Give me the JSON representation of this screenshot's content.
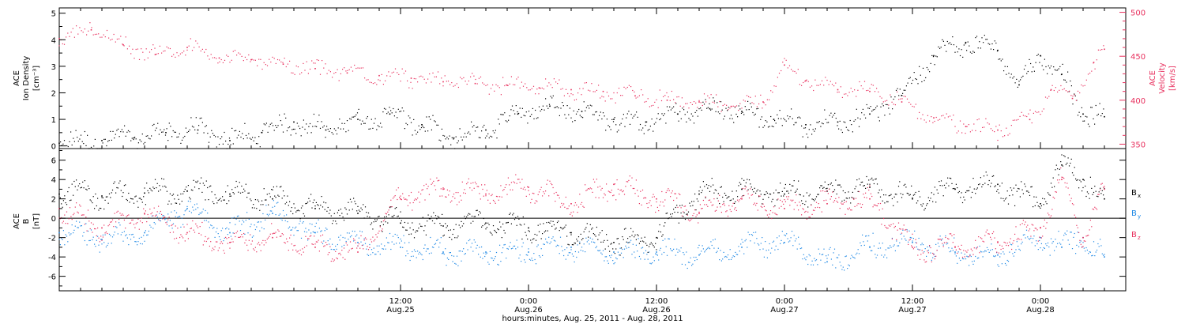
{
  "colors": {
    "black": "#000000",
    "pink": "#e8305e",
    "blue": "#1e88e5"
  },
  "x_axis": {
    "title": "hours:minutes, Aug. 25, 2011 - Aug. 28, 2011",
    "range_hours": [
      -20,
      80
    ],
    "major_ticks": [
      {
        "hours": 12,
        "time": "12:00",
        "date": "Aug.25"
      },
      {
        "hours": 24,
        "time": "0:00",
        "date": "Aug.26"
      },
      {
        "hours": 36,
        "time": "12:00",
        "date": "Aug.26"
      },
      {
        "hours": 48,
        "time": "0:00",
        "date": "Aug.27"
      },
      {
        "hours": 60,
        "time": "12:00",
        "date": "Aug.27"
      },
      {
        "hours": 72,
        "time": "0:00",
        "date": "Aug.28"
      }
    ],
    "minor_tick_step_hours": 2
  },
  "chart_data": [
    {
      "type": "scatter",
      "panel": "density-velocity",
      "left_axis": {
        "label_lines": [
          "ACE",
          "Ion Density"
        ],
        "unit": "[cm⁻³]",
        "ylim": [
          -0.1,
          5.2
        ],
        "tick_values": [
          0,
          1,
          2,
          3,
          4,
          5
        ],
        "tick_labels": [
          "0",
          "1",
          "2",
          "3",
          "4",
          "5"
        ]
      },
      "right_axis": {
        "label_lines": [
          "ACE",
          "Velocity"
        ],
        "unit": "[km/s]",
        "ylim": [
          345,
          505
        ],
        "tick_values": [
          350,
          400,
          450,
          500
        ],
        "tick_labels": [
          "350",
          "400",
          "450",
          "500"
        ]
      },
      "series": [
        {
          "axis": "left",
          "color": "black",
          "x": [
            -20,
            -16,
            -13,
            -10,
            -7,
            -4,
            -1,
            2,
            5,
            8,
            11,
            14,
            17,
            20,
            23,
            26,
            29,
            32,
            35,
            38,
            41,
            44,
            47,
            50,
            53,
            56,
            59,
            62,
            65,
            68,
            70,
            72,
            74,
            76,
            78
          ],
          "y": [
            0.1,
            0.2,
            0.3,
            0.5,
            0.6,
            0.2,
            0.5,
            0.9,
            0.6,
            1.0,
            1.2,
            0.8,
            0.3,
            0.6,
            1.2,
            1.5,
            1.3,
            1.0,
            0.9,
            1.2,
            1.4,
            1.3,
            1.0,
            0.8,
            0.9,
            1.2,
            1.9,
            3.4,
            3.9,
            3.6,
            2.3,
            3.4,
            2.7,
            1.2,
            1.1
          ]
        },
        {
          "axis": "right",
          "color": "pink",
          "x": [
            -20,
            -17,
            -14,
            -11,
            -8,
            -5,
            -2,
            1,
            4,
            7,
            10,
            13,
            16,
            19,
            22,
            25,
            28,
            31,
            34,
            37,
            40,
            43,
            46,
            48,
            50,
            53,
            56,
            59,
            62,
            65,
            68,
            71,
            73,
            75,
            77,
            78
          ],
          "y": [
            470,
            480,
            463,
            452,
            460,
            448,
            446,
            441,
            436,
            431,
            428,
            425,
            421,
            419,
            417,
            414,
            412,
            410,
            405,
            400,
            398,
            393,
            398,
            440,
            422,
            412,
            410,
            398,
            380,
            370,
            366,
            378,
            412,
            402,
            443,
            458
          ]
        }
      ]
    },
    {
      "type": "scatter",
      "panel": "magnetic-field",
      "left_axis": {
        "label_lines": [
          "ACE",
          "B"
        ],
        "unit": "[nT]",
        "ylim": [
          -7.5,
          7.2
        ],
        "tick_values": [
          -6,
          -4,
          -2,
          0,
          2,
          4,
          6
        ],
        "tick_labels": [
          "-6",
          "-4",
          "-2",
          "0",
          "2",
          "4",
          "6"
        ]
      },
      "zero_line": true,
      "series": [
        {
          "name": "B",
          "subscript": "x",
          "color": "black",
          "x": [
            -20,
            -16,
            -12,
            -8,
            -4,
            0,
            4,
            8,
            12,
            16,
            20,
            24,
            28,
            32,
            36,
            40,
            44,
            48,
            52,
            56,
            60,
            64,
            68,
            72,
            74,
            76,
            78
          ],
          "y": [
            2.5,
            2.3,
            2.6,
            2.8,
            2.5,
            2.0,
            1.0,
            0.5,
            -0.5,
            -0.8,
            -0.5,
            -1.0,
            -1.5,
            -2.5,
            -2.0,
            2.5,
            3.0,
            2.5,
            2.8,
            3.2,
            2.0,
            3.0,
            3.5,
            1.5,
            5.5,
            4.0,
            2.0
          ]
        },
        {
          "name": "B",
          "subscript": "y",
          "color": "blue",
          "x": [
            -20,
            -16,
            -12,
            -8,
            -4,
            0,
            4,
            8,
            12,
            16,
            20,
            24,
            28,
            32,
            36,
            40,
            44,
            48,
            52,
            56,
            60,
            64,
            68,
            72,
            74,
            76,
            78
          ],
          "y": [
            -1.5,
            -2.2,
            -1.5,
            1.0,
            -1.5,
            0.5,
            -1.5,
            -2.5,
            -3.0,
            -3.5,
            -3.5,
            -3.5,
            -3.0,
            -3.5,
            -3.5,
            -3.8,
            -3.0,
            -2.5,
            -4.5,
            -3.0,
            -2.5,
            -3.5,
            -3.8,
            -2.0,
            -3.0,
            -2.0,
            -4.0
          ]
        },
        {
          "name": "B",
          "subscript": "z",
          "color": "pink",
          "x": [
            -20,
            -16,
            -12,
            -8,
            -4,
            0,
            4,
            8,
            12,
            16,
            20,
            24,
            28,
            32,
            36,
            40,
            44,
            48,
            52,
            56,
            60,
            64,
            68,
            72,
            74,
            76,
            78
          ],
          "y": [
            1.0,
            -1.0,
            0.5,
            -1.5,
            -2.5,
            -2.0,
            -3.0,
            -3.5,
            2.0,
            3.0,
            2.5,
            3.2,
            1.5,
            3.5,
            2.0,
            0.5,
            2.0,
            1.0,
            1.5,
            2.0,
            -3.0,
            -3.0,
            -2.5,
            -1.0,
            4.0,
            -2.0,
            3.0
          ]
        }
      ]
    }
  ]
}
